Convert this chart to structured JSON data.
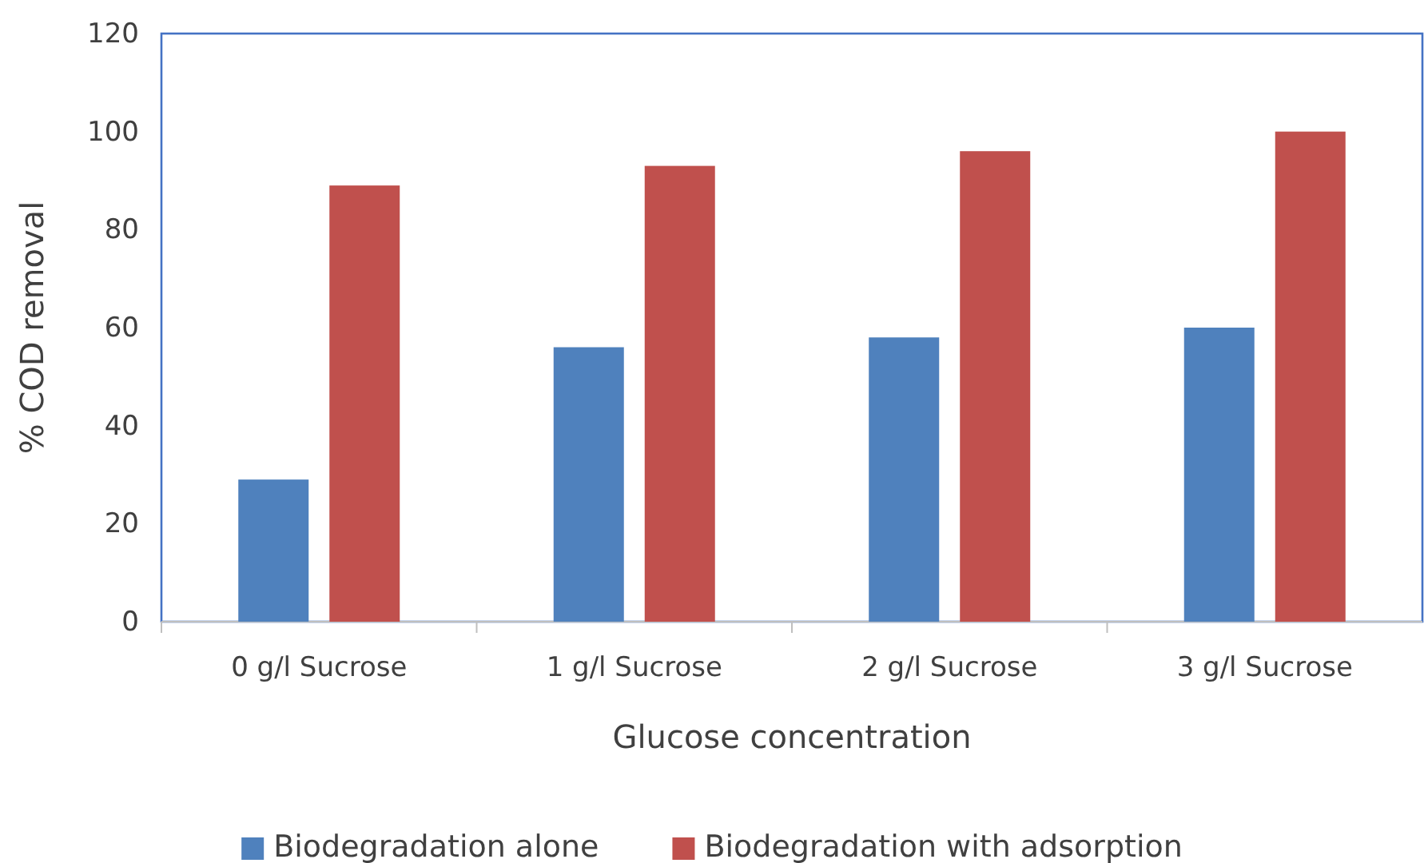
{
  "chart_data": {
    "type": "bar",
    "xlabel": "Glucose concentration",
    "ylabel": "% COD removal",
    "categories": [
      "0 g/l Sucrose",
      "1 g/l Sucrose",
      "2 g/l Sucrose",
      "3 g/l Sucrose"
    ],
    "series": [
      {
        "name": "Biodegradation alone",
        "color": "#4f81bd",
        "values": [
          29,
          56,
          58,
          60
        ]
      },
      {
        "name": "Biodegradation with adsorption",
        "color": "#c0504d",
        "values": [
          89,
          93,
          96,
          100
        ]
      }
    ],
    "ylim": [
      0,
      120
    ],
    "yticks": [
      0,
      20,
      40,
      60,
      80,
      100,
      120
    ],
    "grid": false,
    "legend": "bottom"
  }
}
